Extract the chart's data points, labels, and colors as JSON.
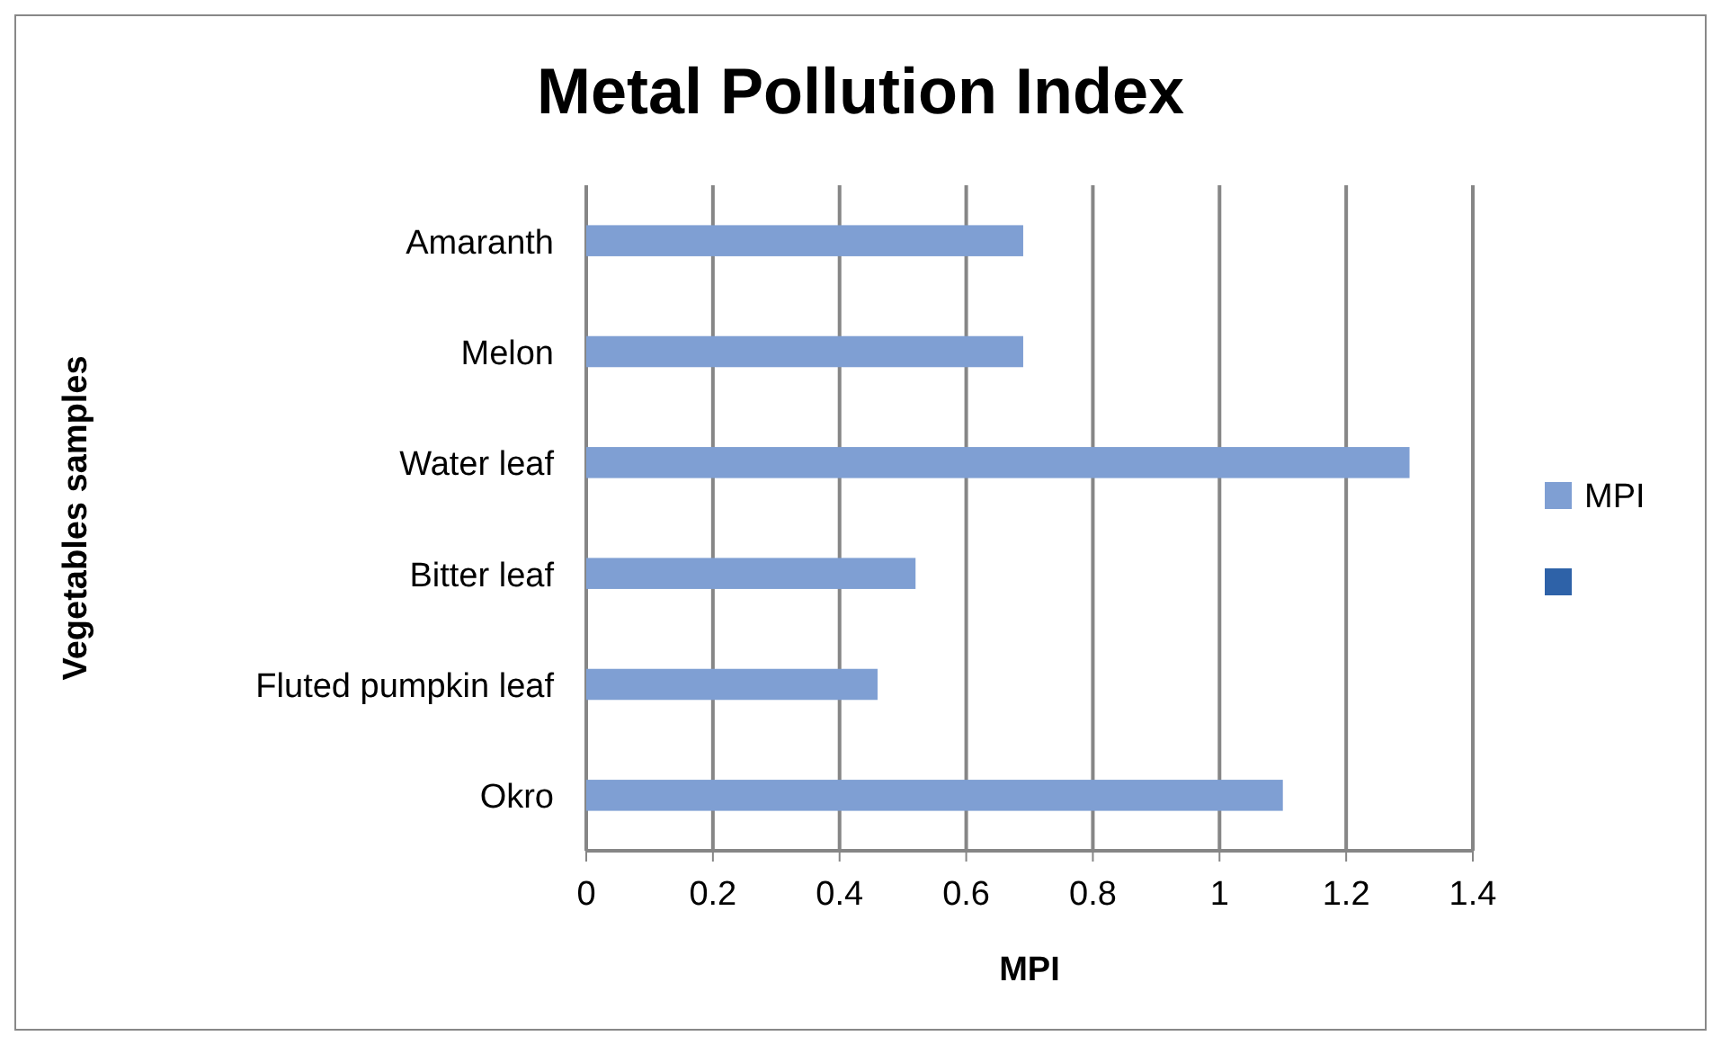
{
  "chart_data": {
    "type": "bar",
    "orientation": "horizontal",
    "title": "Metal Pollution Index",
    "xlabel": "MPI",
    "ylabel": "Vegetables samples",
    "categories": [
      "Amaranth",
      "Melon",
      "Water leaf",
      "Bitter leaf",
      "Fluted pumpkin leaf",
      "Okro"
    ],
    "series": [
      {
        "name": "MPI",
        "color": "#7f9fd3",
        "values": [
          0.69,
          0.69,
          1.3,
          0.52,
          0.46,
          1.1
        ]
      },
      {
        "color": "#2e62a8",
        "values": [
          null,
          null,
          null,
          null,
          null,
          null
        ]
      }
    ],
    "xlim": [
      0,
      1.4
    ],
    "xticks": [
      0,
      0.2,
      0.4,
      0.6,
      0.8,
      1,
      1.2,
      1.4
    ],
    "grid": "x",
    "legend": "right"
  }
}
